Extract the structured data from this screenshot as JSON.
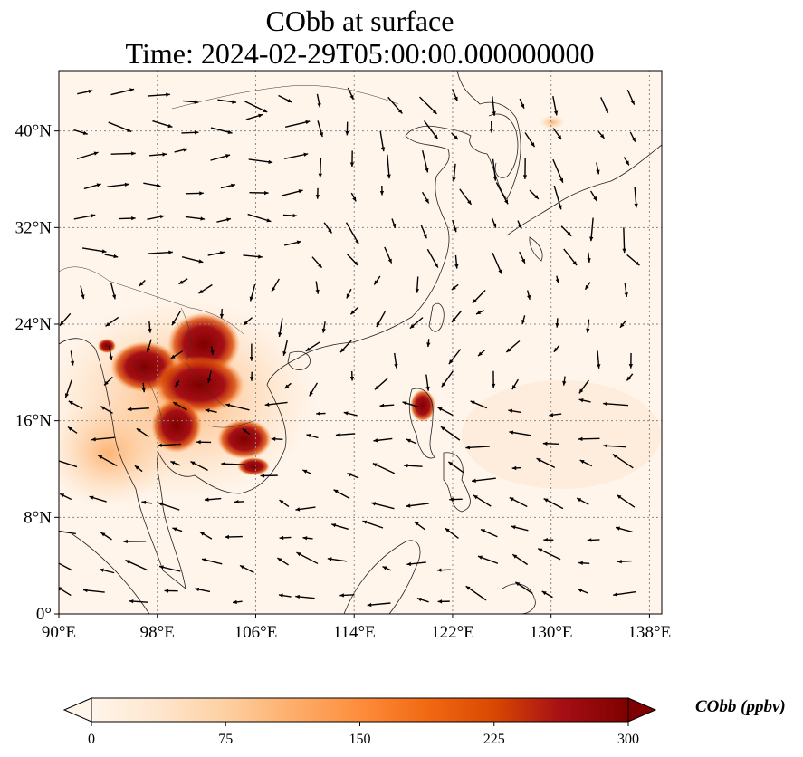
{
  "title": {
    "line1": "CObb at surface",
    "line2": "Time: 2024-02-29T05:00:00.000000000"
  },
  "map": {
    "lon_range": [
      90,
      139
    ],
    "lat_range": [
      0,
      45
    ],
    "lon_ticks": [
      {
        "value": 90,
        "label": "90°E"
      },
      {
        "value": 98,
        "label": "98°E"
      },
      {
        "value": 106,
        "label": "106°E"
      },
      {
        "value": 114,
        "label": "114°E"
      },
      {
        "value": 122,
        "label": "122°E"
      },
      {
        "value": 130,
        "label": "130°E"
      },
      {
        "value": 138,
        "label": "138°E"
      }
    ],
    "lat_ticks": [
      {
        "value": 0,
        "label": "0°"
      },
      {
        "value": 8,
        "label": "8°N"
      },
      {
        "value": 16,
        "label": "16°N"
      },
      {
        "value": 24,
        "label": "24°N"
      },
      {
        "value": 32,
        "label": "32°N"
      },
      {
        "value": 40,
        "label": "40°N"
      }
    ],
    "gridlines": true,
    "colors": {
      "background": "#fff5eb",
      "coast": "#222222",
      "grid": "#888888",
      "arrow": "#000000"
    }
  },
  "colorbar": {
    "label": "CObb (ppbv)",
    "min": 0,
    "max": 300,
    "ticks": [
      0,
      75,
      150,
      225,
      300
    ],
    "colors": [
      "#fff5eb",
      "#fee6ce",
      "#fdd0a2",
      "#fdae6b",
      "#fd8d3c",
      "#f16913",
      "#d94801",
      "#a50f15",
      "#7f0000"
    ],
    "extend": "both"
  }
}
